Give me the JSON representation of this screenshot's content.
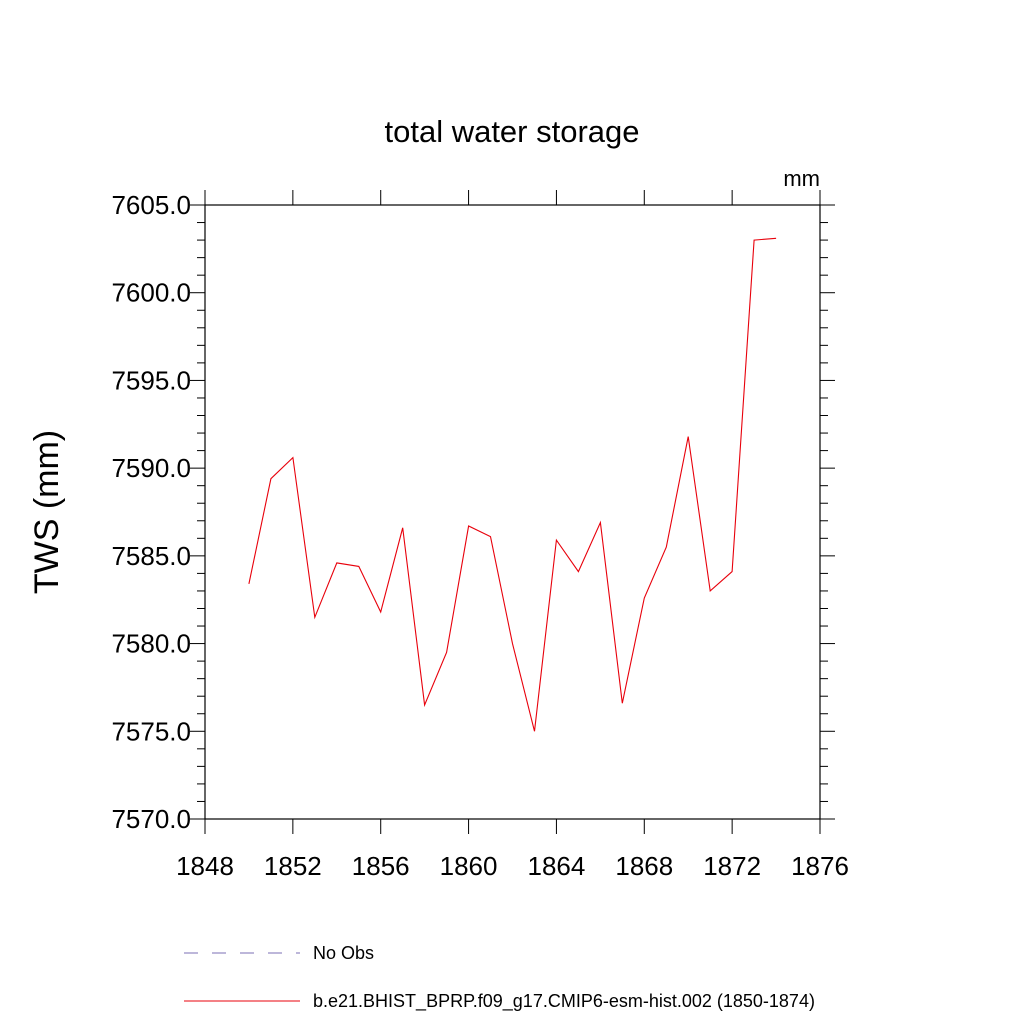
{
  "chart_data": {
    "type": "line",
    "title": "total water storage",
    "units_label": "mm",
    "xlabel": "",
    "ylabel": "TWS  (mm)",
    "xlim": [
      1848,
      1876
    ],
    "ylim": [
      7570.0,
      7605.0
    ],
    "x_ticks": [
      1848,
      1852,
      1856,
      1860,
      1864,
      1868,
      1872,
      1876
    ],
    "x_tick_labels": [
      "1848",
      "1852",
      "1856",
      "1860",
      "1864",
      "1868",
      "1872",
      "1876"
    ],
    "y_ticks": [
      7570.0,
      7575.0,
      7580.0,
      7585.0,
      7590.0,
      7595.0,
      7600.0,
      7605.0
    ],
    "y_tick_labels": [
      "7570.0",
      "7575.0",
      "7580.0",
      "7585.0",
      "7590.0",
      "7595.0",
      "7600.0",
      "7605.0"
    ],
    "grid": false,
    "legend_position": "bottom",
    "series": [
      {
        "name": "b.e21.BHIST_BPRP.f09_g17.CMIP6-esm-hist.002 (1850-1874)",
        "color": "#e8000b",
        "style": "solid",
        "x": [
          1850,
          1851,
          1852,
          1853,
          1854,
          1855,
          1856,
          1857,
          1858,
          1859,
          1860,
          1861,
          1862,
          1863,
          1864,
          1865,
          1866,
          1867,
          1868,
          1869,
          1870,
          1871,
          1872,
          1873,
          1874
        ],
        "values": [
          7583.4,
          7589.4,
          7590.6,
          7581.5,
          7584.6,
          7584.4,
          7581.8,
          7586.6,
          7576.5,
          7579.5,
          7586.7,
          7586.1,
          7580.0,
          7575.0,
          7585.9,
          7584.1,
          7586.9,
          7576.6,
          7582.6,
          7585.5,
          7591.8,
          7583.0,
          7584.1,
          7603.0,
          7603.1
        ]
      }
    ],
    "legend": [
      {
        "label": "No Obs",
        "color": "#7b6fb5",
        "style": "dashed"
      },
      {
        "label": "b.e21.BHIST_BPRP.f09_g17.CMIP6-esm-hist.002 (1850-1874)",
        "color": "#e8000b",
        "style": "solid"
      }
    ]
  }
}
